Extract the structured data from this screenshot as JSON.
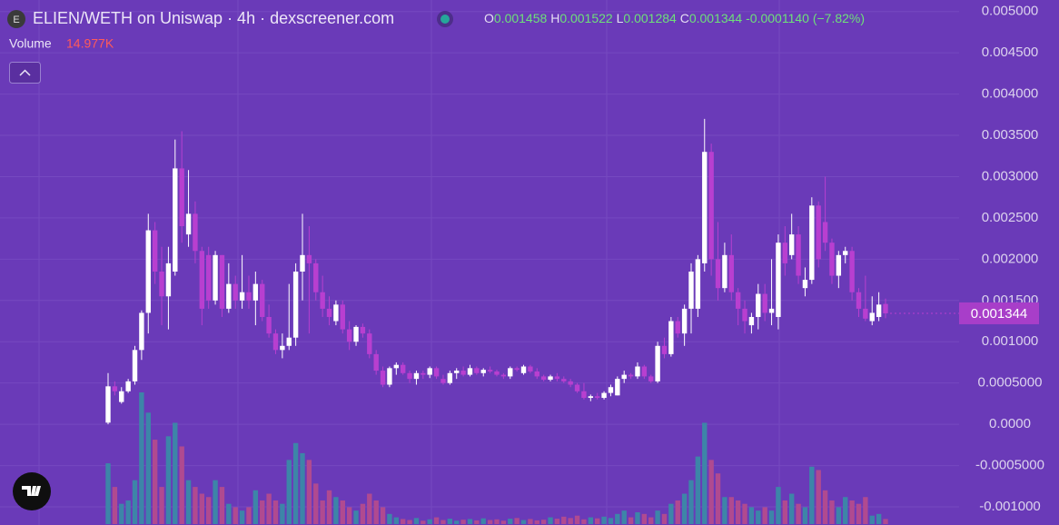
{
  "chart_data": {
    "type": "candlestick",
    "title": "ELIEN/WETH on Uniswap · 4h · dexscreener.com",
    "ohlc_labels": [
      "O",
      "H",
      "L",
      "C"
    ],
    "change": "-0.0001140",
    "change_pct": "(−7.82%)",
    "volume_title": "Volume",
    "volume_label": "14.977K",
    "up_color": "#ffffff",
    "down_color": "#b83fd0",
    "volume_up_color": "#3d85a8",
    "volume_down_color": "#b04a90",
    "grid": true,
    "ylim": [
      -0.00122,
      0.00514
    ],
    "yticks": [
      {
        "value": 0.005,
        "label": "0.005000"
      },
      {
        "value": 0.0045,
        "label": "0.004500"
      },
      {
        "value": 0.004,
        "label": "0.004000"
      },
      {
        "value": 0.0035,
        "label": "0.003500"
      },
      {
        "value": 0.003,
        "label": "0.003000"
      },
      {
        "value": 0.0025,
        "label": "0.002500"
      },
      {
        "value": 0.002,
        "label": "0.002000"
      },
      {
        "value": 0.0015,
        "label": "0.001500"
      },
      {
        "value": 0.001,
        "label": "0.001000"
      },
      {
        "value": 0.0005,
        "label": "0.0005000"
      },
      {
        "value": 0,
        "label": "0.0000"
      },
      {
        "value": -0.0005,
        "label": "-0.0005000"
      },
      {
        "value": -0.001,
        "label": "-0.001000"
      }
    ],
    "open": [
      2e-05,
      0.00046,
      0.00027,
      0.0004,
      0.00052,
      0.0009,
      0.00135,
      0.00235,
      0.00185,
      0.00155,
      0.00185,
      0.0031,
      0.0023,
      0.00255,
      0.0021,
      0.00205,
      0.0015,
      0.00205,
      0.0014,
      0.0017,
      0.0015,
      0.0016,
      0.0015,
      0.0017,
      0.0013,
      0.0011,
      0.0009,
      0.00095,
      0.00105,
      0.00185,
      0.00205,
      0.00195,
      0.0016,
      0.0014,
      0.00125,
      0.00145,
      0.00115,
      0.001,
      0.00118,
      0.0011,
      0.00085,
      0.00065,
      0.00048,
      0.00068,
      0.00072,
      0.00062,
      0.00055,
      0.00062,
      0.0006,
      0.00068,
      0.00055,
      0.0005,
      0.00062,
      0.00065,
      0.0006,
      0.00068,
      0.00062,
      0.00066,
      0.00064,
      0.0006,
      0.00058,
      0.00068,
      0.00062,
      0.0007,
      0.00064,
      0.00058,
      0.00054,
      0.00058,
      0.00055,
      0.00052,
      0.00048,
      0.0004,
      0.00032,
      0.00034,
      0.00032,
      0.00038,
      0.00035,
      0.00055,
      0.0006,
      0.00058,
      0.0007,
      0.00058,
      0.00052,
      0.00095,
      0.00085,
      0.00125,
      0.0011,
      0.0014,
      0.0014,
      0.00195,
      0.0033,
      0.002,
      0.00165,
      0.00205,
      0.0016,
      0.0014,
      0.0012,
      0.0013,
      0.00158,
      0.00135,
      0.0013,
      0.0022,
      0.00205,
      0.0023,
      0.00165,
      0.00175,
      0.00265,
      0.00245,
      0.0022,
      0.0018,
      0.00205,
      0.0021,
      0.0016,
      0.0014,
      0.00125,
      0.0013,
      0.001458
    ],
    "high": [
      0.00062,
      0.00052,
      0.00045,
      0.00055,
      0.00095,
      0.00138,
      0.00255,
      0.00245,
      0.00215,
      0.00215,
      0.00345,
      0.00355,
      0.00308,
      0.0027,
      0.00215,
      0.00215,
      0.0021,
      0.00205,
      0.00195,
      0.0018,
      0.00205,
      0.0018,
      0.00185,
      0.00175,
      0.00145,
      0.00115,
      0.0011,
      0.0017,
      0.00195,
      0.00255,
      0.0024,
      0.002,
      0.0018,
      0.00155,
      0.0015,
      0.0015,
      0.00125,
      0.0012,
      0.00122,
      0.00115,
      0.0009,
      0.0007,
      0.0007,
      0.00075,
      0.00075,
      0.00065,
      0.00065,
      0.00065,
      0.0007,
      0.0007,
      0.0006,
      0.00065,
      0.00068,
      0.0007,
      0.00072,
      0.0007,
      0.00068,
      0.0007,
      0.00066,
      0.00062,
      0.0007,
      0.0007,
      0.00072,
      0.00072,
      0.00068,
      0.0006,
      0.0006,
      0.00062,
      0.00058,
      0.00055,
      0.0005,
      0.0005,
      0.00036,
      0.00038,
      0.0004,
      0.00048,
      0.00058,
      0.00065,
      0.00062,
      0.00075,
      0.00072,
      0.0006,
      0.001,
      0.00105,
      0.0013,
      0.0013,
      0.00145,
      0.00195,
      0.00205,
      0.0037,
      0.0034,
      0.00245,
      0.0022,
      0.0023,
      0.00165,
      0.0015,
      0.00135,
      0.0017,
      0.0017,
      0.002,
      0.0023,
      0.0024,
      0.00255,
      0.0024,
      0.0019,
      0.00275,
      0.0027,
      0.003,
      0.00225,
      0.0021,
      0.00215,
      0.00215,
      0.00165,
      0.0018,
      0.00155,
      0.0016,
      0.001522
    ],
    "low": [
      0,
      0.00035,
      0.00025,
      0.00038,
      0.00048,
      0.00078,
      0.0011,
      0.0017,
      0.0012,
      0.00115,
      0.0018,
      0.0022,
      0.00215,
      0.00195,
      0.0012,
      0.0014,
      0.00145,
      0.0013,
      0.00135,
      0.0014,
      0.0014,
      0.0014,
      0.0012,
      0.00125,
      0.00105,
      0.00085,
      0.0008,
      0.0009,
      0.00095,
      0.0015,
      0.0011,
      0.0015,
      0.0013,
      0.0012,
      0.0012,
      0.0011,
      0.0009,
      0.00095,
      0.00105,
      0.0008,
      0.0006,
      0.00045,
      0.00045,
      0.0006,
      0.0006,
      0.0005,
      0.00048,
      0.00055,
      0.00056,
      0.00055,
      0.00048,
      0.00048,
      0.00055,
      0.00058,
      0.00058,
      0.0006,
      0.00058,
      0.00062,
      0.00058,
      0.00055,
      0.00055,
      0.00064,
      0.0006,
      0.00062,
      0.00055,
      0.00052,
      0.00052,
      0.00052,
      0.0005,
      0.00045,
      0.00038,
      0.0003,
      0.00028,
      0.0003,
      0.0003,
      0.00034,
      0.00035,
      0.0005,
      0.00055,
      0.00055,
      0.00055,
      0.0005,
      0.0005,
      0.0008,
      0.00082,
      0.00105,
      0.00095,
      0.0011,
      0.0013,
      0.00185,
      0.0018,
      0.0015,
      0.0016,
      0.0015,
      0.0012,
      0.0011,
      0.0011,
      0.00115,
      0.00125,
      0.0012,
      0.00115,
      0.0018,
      0.002,
      0.0017,
      0.00155,
      0.0017,
      0.0019,
      0.0021,
      0.0017,
      0.00165,
      0.00195,
      0.0015,
      0.0013,
      0.00125,
      0.0012,
      0.00125,
      0.001284
    ],
    "close": [
      0.00046,
      0.0004,
      0.0004,
      0.00052,
      0.0009,
      0.00135,
      0.00235,
      0.00185,
      0.00155,
      0.00195,
      0.0031,
      0.0024,
      0.00255,
      0.0021,
      0.0014,
      0.0015,
      0.00205,
      0.0014,
      0.0017,
      0.0015,
      0.0016,
      0.0015,
      0.0017,
      0.0013,
      0.0011,
      0.0009,
      0.00095,
      0.00105,
      0.00185,
      0.00205,
      0.00195,
      0.0016,
      0.0014,
      0.0013,
      0.00145,
      0.00115,
      0.001,
      0.00118,
      0.0011,
      0.00085,
      0.00065,
      0.00048,
      0.00068,
      0.00072,
      0.00062,
      0.00055,
      0.00062,
      0.0006,
      0.00068,
      0.00058,
      0.0005,
      0.00062,
      0.00065,
      0.0006,
      0.00068,
      0.00062,
      0.00066,
      0.00064,
      0.0006,
      0.00058,
      0.00068,
      0.00066,
      0.0007,
      0.00064,
      0.00058,
      0.00054,
      0.00058,
      0.00055,
      0.00052,
      0.00048,
      0.0004,
      0.00032,
      0.00034,
      0.00032,
      0.00038,
      0.00045,
      0.00055,
      0.0006,
      0.00058,
      0.0007,
      0.00058,
      0.00052,
      0.00095,
      0.00085,
      0.00125,
      0.0011,
      0.0014,
      0.00185,
      0.002,
      0.0033,
      0.002,
      0.00165,
      0.00205,
      0.0016,
      0.0014,
      0.00125,
      0.0013,
      0.00158,
      0.00135,
      0.0014,
      0.0022,
      0.00195,
      0.0023,
      0.0018,
      0.00175,
      0.00265,
      0.002,
      0.0022,
      0.0018,
      0.00205,
      0.0021,
      0.0016,
      0.0014,
      0.00128,
      0.00135,
      0.00145,
      0.001344
    ],
    "volume": [
      180000,
      110000,
      60000,
      70000,
      130000,
      390000,
      330000,
      250000,
      110000,
      260000,
      300000,
      230000,
      130000,
      110000,
      90000,
      80000,
      130000,
      110000,
      60000,
      50000,
      40000,
      50000,
      100000,
      70000,
      90000,
      70000,
      60000,
      190000,
      240000,
      210000,
      190000,
      120000,
      70000,
      100000,
      80000,
      70000,
      50000,
      40000,
      60000,
      90000,
      70000,
      50000,
      30000,
      20000,
      15000,
      12000,
      18000,
      10000,
      14000,
      20000,
      12000,
      16000,
      10000,
      13000,
      15000,
      11000,
      17000,
      12000,
      14000,
      10000,
      16000,
      18000,
      12000,
      15000,
      11000,
      13000,
      20000,
      16000,
      22000,
      18000,
      25000,
      14000,
      20000,
      17000,
      22000,
      18000,
      30000,
      40000,
      20000,
      35000,
      30000,
      20000,
      40000,
      30000,
      60000,
      70000,
      90000,
      130000,
      200000,
      300000,
      190000,
      150000,
      80000,
      80000,
      70000,
      60000,
      50000,
      40000,
      50000,
      40000,
      110000,
      70000,
      90000,
      60000,
      50000,
      170000,
      160000,
      100000,
      70000,
      50000,
      80000,
      70000,
      60000,
      80000,
      25000,
      30000,
      14977
    ]
  }
}
